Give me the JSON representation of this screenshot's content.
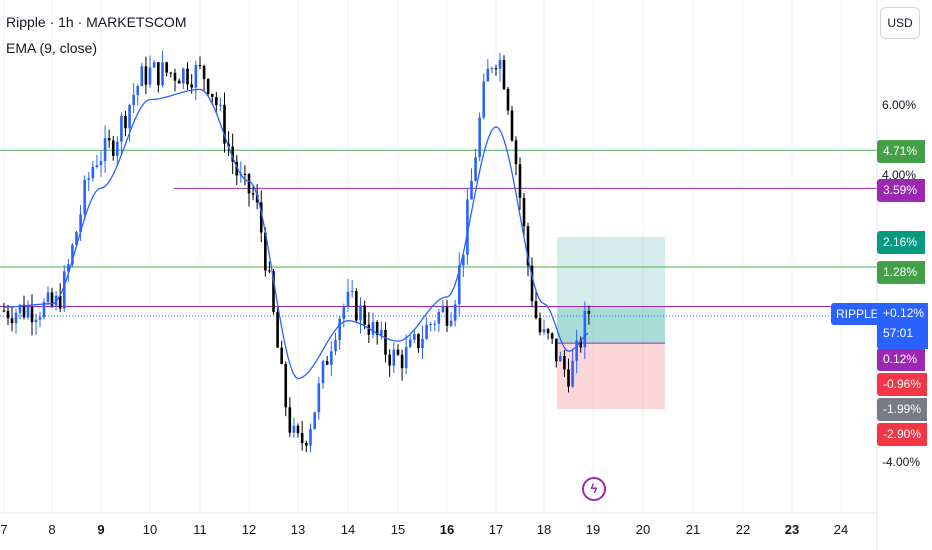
{
  "header": {
    "title": "Ripple · 1h · MARKETSCOM",
    "indicator": "EMA (9, close)",
    "currency_button": "USD"
  },
  "price_scale": {
    "labels": [
      "6.00%",
      "4.00%",
      "-4.00%"
    ],
    "tags": [
      {
        "text": "4.71%",
        "color": "#43a047"
      },
      {
        "text": "3.59%",
        "color": "#9c27b0"
      },
      {
        "text": "2.16%",
        "color": "#089981"
      },
      {
        "text": "1.28%",
        "color": "#43a047"
      },
      {
        "text": "0.12%",
        "color": "#9c27b0"
      },
      {
        "text": "-0.96%",
        "color": "#f23645"
      },
      {
        "text": "-1.99%",
        "color": "#787b86"
      },
      {
        "text": "-2.90%",
        "color": "#f23645"
      }
    ],
    "symbol_tag": "RIPPLE",
    "current_change": "+0.12%",
    "countdown": "57:01"
  },
  "time_axis": {
    "labels": [
      {
        "text": "7",
        "bold": false
      },
      {
        "text": "8",
        "bold": false
      },
      {
        "text": "9",
        "bold": true
      },
      {
        "text": "10",
        "bold": false
      },
      {
        "text": "11",
        "bold": false
      },
      {
        "text": "12",
        "bold": false
      },
      {
        "text": "13",
        "bold": false
      },
      {
        "text": "14",
        "bold": false
      },
      {
        "text": "15",
        "bold": false
      },
      {
        "text": "16",
        "bold": true
      },
      {
        "text": "17",
        "bold": false
      },
      {
        "text": "18",
        "bold": false
      },
      {
        "text": "19",
        "bold": false
      },
      {
        "text": "20",
        "bold": false
      },
      {
        "text": "21",
        "bold": false
      },
      {
        "text": "22",
        "bold": false
      },
      {
        "text": "23",
        "bold": true
      },
      {
        "text": "24",
        "bold": false
      }
    ]
  },
  "events": {
    "icon": "lightning-icon"
  },
  "colors": {
    "up": "#2962ff",
    "down": "#000000",
    "ema": "#2962ff",
    "green_line": "#4caf50",
    "purple_line": "#9c27b0",
    "target_zone": "#26a69a",
    "stop_zone": "#f23645"
  },
  "chart_data": {
    "type": "line",
    "title": "Ripple · 1h · MARKETSCOM",
    "y_unit": "percent change",
    "ylim": [
      -4.6,
      7.6
    ],
    "x": [
      "7",
      "8",
      "9",
      "10",
      "11",
      "12",
      "13",
      "14",
      "15",
      "16",
      "17",
      "18",
      "18.5",
      "19"
    ],
    "series": [
      {
        "name": "Ripple",
        "values": [
          0.0,
          0.1,
          4.6,
          7.0,
          7.0,
          3.5,
          -3.9,
          0.2,
          -1.4,
          0.0,
          7.5,
          -0.8,
          -1.8,
          0.12
        ]
      },
      {
        "name": "EMA (9, close)",
        "values": [
          0.1,
          0.2,
          3.6,
          6.2,
          6.5,
          3.8,
          -2.0,
          -0.3,
          -0.9,
          0.4,
          5.4,
          0.2,
          -1.2,
          -0.6
        ]
      }
    ],
    "horizontal_levels": [
      4.71,
      3.59,
      1.28,
      0.12
    ],
    "position": {
      "entry": -0.96,
      "target": 2.16,
      "stop": -2.9
    }
  }
}
